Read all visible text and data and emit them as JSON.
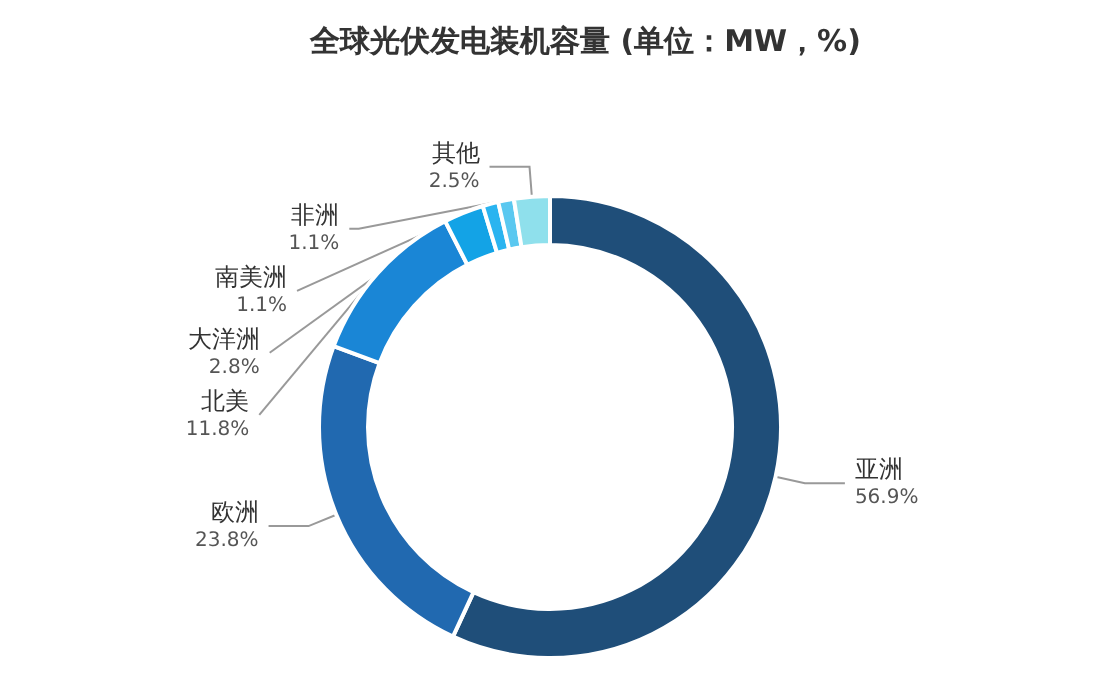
{
  "chart_data": {
    "type": "donut",
    "title": "全球光伏发电装机容量 (单位：MW，%)",
    "categories": [
      "亚洲",
      "欧洲",
      "北美",
      "大洋洲",
      "南美洲",
      "非洲",
      "其他"
    ],
    "values": [
      56.9,
      23.8,
      11.8,
      2.8,
      1.1,
      1.1,
      2.5
    ],
    "value_labels": [
      "56.9%",
      "23.8%",
      "11.8%",
      "2.8%",
      "1.1%",
      "1.1%",
      "2.5%"
    ],
    "colors": [
      "#1f4e79",
      "#2169b0",
      "#1a86d6",
      "#13a3e6",
      "#2ab4f0",
      "#5ac8f0",
      "#8fe0ec"
    ],
    "legend": false
  }
}
